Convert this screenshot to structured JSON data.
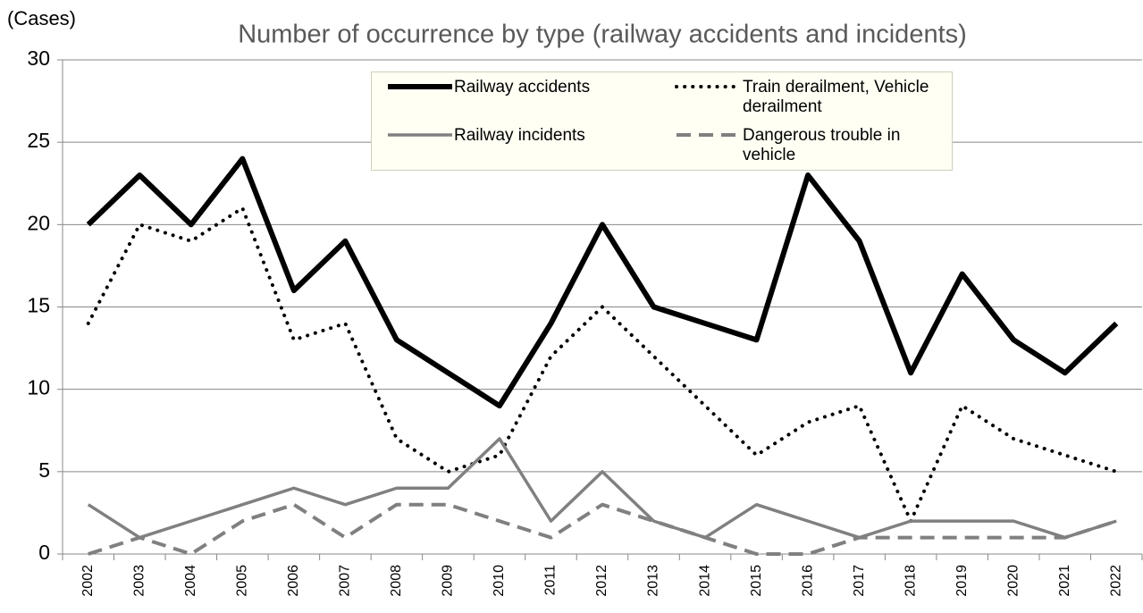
{
  "chart_data": {
    "type": "line",
    "title": "Number of occurrence by type (railway accidents and incidents)",
    "y_label": "(Cases)",
    "categories": [
      "2002",
      "2003",
      "2004",
      "2005",
      "2006",
      "2007",
      "2008",
      "2009",
      "2010",
      "2011",
      "2012",
      "2013",
      "2014",
      "2015",
      "2016",
      "2017",
      "2018",
      "2019",
      "2020",
      "2021",
      "2022"
    ],
    "series": [
      {
        "name": "Railway accidents",
        "color": "#000000",
        "style": "solid",
        "values": [
          20,
          23,
          20,
          24,
          16,
          19,
          13,
          11,
          9,
          14,
          20,
          15,
          14,
          13,
          23,
          19,
          11,
          17,
          13,
          11,
          14
        ]
      },
      {
        "name": "Train derailment, Vehicle derailment",
        "color": "#000000",
        "style": "dotted",
        "values": [
          14,
          20,
          19,
          21,
          13,
          14,
          7,
          5,
          6,
          12,
          15,
          12,
          9,
          6,
          8,
          9,
          2,
          9,
          7,
          6,
          5
        ]
      },
      {
        "name": "Railway incidents",
        "color": "#808080",
        "style": "solid",
        "values": [
          3,
          1,
          2,
          3,
          4,
          3,
          4,
          4,
          7,
          2,
          5,
          2,
          1,
          3,
          2,
          1,
          2,
          2,
          2,
          1,
          2
        ]
      },
      {
        "name": "Dangerous trouble in vehicle",
        "color": "#808080",
        "style": "dashed",
        "values": [
          0,
          1,
          0,
          2,
          3,
          1,
          3,
          3,
          2,
          1,
          3,
          2,
          1,
          0,
          0,
          1,
          1,
          1,
          1,
          1,
          2
        ]
      }
    ],
    "ylim": [
      0,
      30
    ],
    "yticks": [
      0,
      5,
      10,
      15,
      20,
      25,
      30
    ],
    "grid": true
  }
}
